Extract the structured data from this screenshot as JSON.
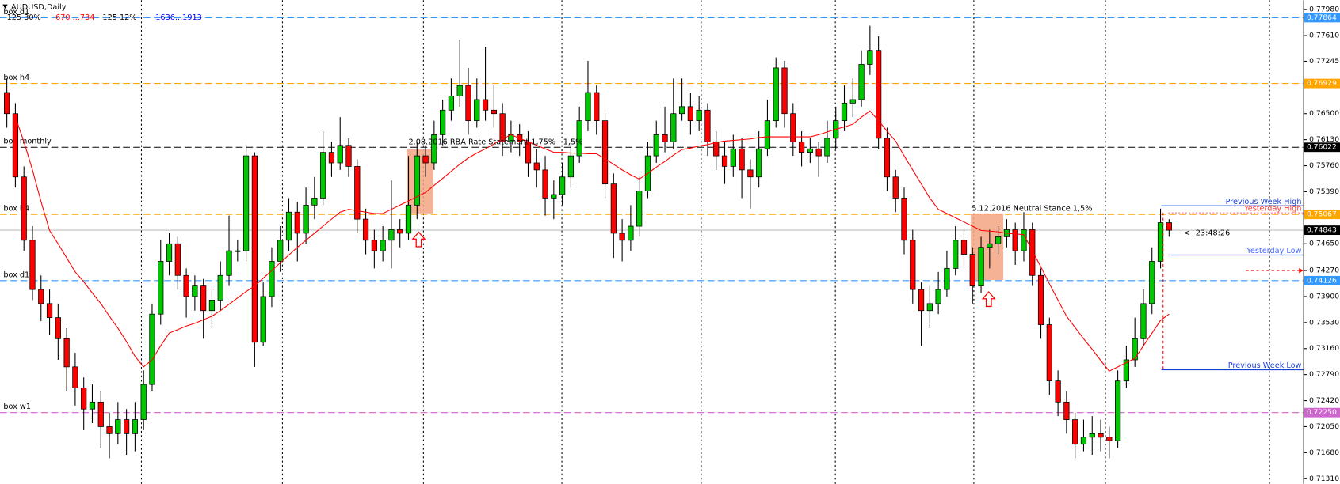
{
  "chart_data": {
    "type": "candlestick",
    "title": "AUDUSD,Daily",
    "info": [
      {
        "text": "125 30%",
        "color": "#000000"
      },
      {
        "text": "670 ...734",
        "color": "#ff0000"
      },
      {
        "text": "125 12%",
        "color": "#000000"
      },
      {
        "text": "1636...1913",
        "color": "#0000ff"
      }
    ],
    "colors": {
      "up": "#00c800",
      "down": "#ff0000"
    },
    "open": [
      0.768,
      0.765,
      0.756,
      0.747,
      0.74,
      0.738,
      0.736,
      0.733,
      0.729,
      0.726,
      0.723,
      0.724,
      0.7205,
      0.7195,
      0.7215,
      0.7195,
      0.7215,
      0.7265,
      0.7365,
      0.744,
      0.7465,
      0.742,
      0.739,
      0.7405,
      0.737,
      0.7385,
      0.742,
      0.7455,
      0.7455,
      0.759,
      0.7325,
      0.739,
      0.744,
      0.747,
      0.751,
      0.748,
      0.752,
      0.753,
      0.7595,
      0.758,
      0.7605,
      0.7575,
      0.75,
      0.747,
      0.7455,
      0.747,
      0.7485,
      0.748,
      0.752,
      0.759,
      0.758,
      0.762,
      0.7655,
      0.7675,
      0.769,
      0.764,
      0.767,
      0.7655,
      0.765,
      0.761,
      0.762,
      0.761,
      0.758,
      0.757,
      0.753,
      0.7535,
      0.756,
      0.759,
      0.764,
      0.768,
      0.764,
      0.755,
      0.748,
      0.747,
      0.749,
      0.754,
      0.759,
      0.762,
      0.761,
      0.765,
      0.766,
      0.764,
      0.7655,
      0.761,
      0.759,
      0.7575,
      0.76,
      0.757,
      0.756,
      0.76,
      0.764,
      0.7715,
      0.765,
      0.761,
      0.7595,
      0.76,
      0.759,
      0.7615,
      0.764,
      0.7665,
      0.767,
      0.772,
      0.774,
      0.7615,
      0.756,
      0.753,
      0.747,
      0.74,
      0.737,
      0.738,
      0.74,
      0.743,
      0.747,
      0.745,
      0.7405,
      0.746,
      0.7465,
      0.7475,
      0.7485,
      0.7455,
      0.7485,
      0.742,
      0.735,
      0.727,
      0.724,
      0.7215,
      0.718,
      0.719,
      0.7195,
      0.719,
      0.7185,
      0.727,
      0.73,
      0.733,
      0.738,
      0.744,
      0.7495
    ],
    "high": [
      0.77,
      0.7665,
      0.7575,
      0.749,
      0.742,
      0.74,
      0.738,
      0.7345,
      0.731,
      0.7275,
      0.7265,
      0.7255,
      0.7225,
      0.724,
      0.723,
      0.724,
      0.7285,
      0.738,
      0.747,
      0.748,
      0.7475,
      0.743,
      0.742,
      0.7415,
      0.74,
      0.744,
      0.7505,
      0.747,
      0.7605,
      0.7595,
      0.741,
      0.746,
      0.749,
      0.753,
      0.7525,
      0.7545,
      0.756,
      0.7625,
      0.761,
      0.7645,
      0.7615,
      0.7585,
      0.7515,
      0.7485,
      0.749,
      0.7555,
      0.75,
      0.759,
      0.761,
      0.7605,
      0.764,
      0.767,
      0.77,
      0.7755,
      0.7715,
      0.77,
      0.7745,
      0.769,
      0.7665,
      0.764,
      0.7635,
      0.7625,
      0.76,
      0.759,
      0.7555,
      0.758,
      0.761,
      0.766,
      0.7725,
      0.769,
      0.765,
      0.7565,
      0.75,
      0.752,
      0.756,
      0.761,
      0.764,
      0.766,
      0.77,
      0.77,
      0.768,
      0.7675,
      0.7665,
      0.7625,
      0.761,
      0.762,
      0.7615,
      0.7585,
      0.7625,
      0.767,
      0.773,
      0.7725,
      0.7665,
      0.7625,
      0.7615,
      0.761,
      0.764,
      0.766,
      0.769,
      0.77,
      0.774,
      0.7775,
      0.776,
      0.763,
      0.757,
      0.7545,
      0.7485,
      0.741,
      0.7405,
      0.7425,
      0.7455,
      0.749,
      0.7485,
      0.746,
      0.7475,
      0.7485,
      0.749,
      0.75,
      0.7495,
      0.751,
      0.7495,
      0.743,
      0.736,
      0.7285,
      0.7255,
      0.7225,
      0.7215,
      0.722,
      0.7215,
      0.7205,
      0.7285,
      0.732,
      0.736,
      0.74,
      0.746,
      0.7515,
      0.75
    ],
    "low": [
      0.763,
      0.7545,
      0.7455,
      0.7385,
      0.7355,
      0.7335,
      0.73,
      0.7255,
      0.7235,
      0.72,
      0.721,
      0.7175,
      0.716,
      0.718,
      0.7165,
      0.717,
      0.72,
      0.7255,
      0.735,
      0.742,
      0.74,
      0.736,
      0.737,
      0.733,
      0.7345,
      0.737,
      0.7405,
      0.744,
      0.744,
      0.729,
      0.732,
      0.7375,
      0.7425,
      0.7455,
      0.744,
      0.7465,
      0.75,
      0.752,
      0.756,
      0.757,
      0.756,
      0.748,
      0.745,
      0.743,
      0.744,
      0.743,
      0.746,
      0.747,
      0.75,
      0.756,
      0.757,
      0.7605,
      0.764,
      0.766,
      0.762,
      0.763,
      0.764,
      0.763,
      0.759,
      0.7595,
      0.759,
      0.756,
      0.7545,
      0.7505,
      0.75,
      0.752,
      0.7545,
      0.758,
      0.7625,
      0.762,
      0.753,
      0.7445,
      0.744,
      0.7455,
      0.7475,
      0.753,
      0.758,
      0.7595,
      0.76,
      0.764,
      0.762,
      0.7625,
      0.759,
      0.757,
      0.755,
      0.756,
      0.753,
      0.7515,
      0.7545,
      0.759,
      0.763,
      0.763,
      0.759,
      0.7575,
      0.758,
      0.756,
      0.758,
      0.76,
      0.7625,
      0.7645,
      0.766,
      0.7705,
      0.76,
      0.754,
      0.751,
      0.745,
      0.738,
      0.732,
      0.7345,
      0.7365,
      0.739,
      0.742,
      0.743,
      0.738,
      0.7395,
      0.743,
      0.745,
      0.746,
      0.7435,
      0.744,
      0.7405,
      0.733,
      0.725,
      0.722,
      0.7195,
      0.716,
      0.717,
      0.7165,
      0.717,
      0.716,
      0.7175,
      0.726,
      0.729,
      0.732,
      0.7365,
      0.743,
      0.7475
    ],
    "close": [
      0.765,
      0.756,
      0.747,
      0.74,
      0.738,
      0.736,
      0.733,
      0.729,
      0.726,
      0.723,
      0.724,
      0.7205,
      0.7195,
      0.7215,
      0.7195,
      0.7215,
      0.7265,
      0.7365,
      0.744,
      0.7465,
      0.742,
      0.739,
      0.7405,
      0.737,
      0.7385,
      0.742,
      0.7455,
      0.7455,
      0.759,
      0.7325,
      0.739,
      0.744,
      0.747,
      0.751,
      0.748,
      0.752,
      0.753,
      0.7595,
      0.758,
      0.7605,
      0.7575,
      0.75,
      0.747,
      0.7455,
      0.747,
      0.7485,
      0.748,
      0.752,
      0.759,
      0.758,
      0.762,
      0.7655,
      0.7675,
      0.769,
      0.764,
      0.767,
      0.7655,
      0.765,
      0.761,
      0.762,
      0.761,
      0.758,
      0.757,
      0.753,
      0.7535,
      0.756,
      0.759,
      0.764,
      0.768,
      0.764,
      0.755,
      0.748,
      0.747,
      0.749,
      0.754,
      0.759,
      0.762,
      0.761,
      0.765,
      0.766,
      0.764,
      0.7655,
      0.761,
      0.759,
      0.7575,
      0.76,
      0.757,
      0.756,
      0.76,
      0.764,
      0.7715,
      0.765,
      0.761,
      0.7595,
      0.76,
      0.759,
      0.7615,
      0.764,
      0.7665,
      0.767,
      0.772,
      0.774,
      0.7615,
      0.756,
      0.753,
      0.747,
      0.74,
      0.737,
      0.738,
      0.74,
      0.743,
      0.747,
      0.745,
      0.7405,
      0.746,
      0.7465,
      0.7475,
      0.7485,
      0.7455,
      0.7485,
      0.742,
      0.735,
      0.727,
      0.724,
      0.7215,
      0.718,
      0.719,
      0.7195,
      0.719,
      0.7185,
      0.727,
      0.73,
      0.733,
      0.738,
      0.744,
      0.7495,
      0.74843
    ],
    "ma": {
      "color": "#ff0000",
      "values": [
        null,
        0.7645,
        0.761,
        0.757,
        0.7525,
        0.7484,
        0.7465,
        0.7445,
        0.7425,
        0.7411,
        0.7395,
        0.738,
        0.7362,
        0.7345,
        0.7326,
        0.7305,
        0.729,
        0.73,
        0.732,
        0.7338,
        0.7343,
        0.7348,
        0.7352,
        0.7357,
        0.7362,
        0.737,
        0.7379,
        0.7388,
        0.7397,
        0.7405,
        0.7416,
        0.7427,
        0.7438,
        0.7449,
        0.746,
        0.747,
        0.748,
        0.749,
        0.75,
        0.751,
        0.7514,
        0.7512,
        0.751,
        0.7508,
        0.7508,
        0.7514,
        0.752,
        0.7526,
        0.7532,
        0.7538,
        0.7548,
        0.7558,
        0.7568,
        0.7578,
        0.7587,
        0.7594,
        0.76,
        0.7607,
        0.7614,
        0.762,
        0.7615,
        0.761,
        0.7605,
        0.76,
        0.7595,
        0.7595,
        0.7594,
        0.7594,
        0.7593,
        0.7593,
        0.7586,
        0.7578,
        0.757,
        0.7563,
        0.7557,
        0.7565,
        0.7574,
        0.7582,
        0.7591,
        0.7599,
        0.7601,
        0.7604,
        0.7606,
        0.7609,
        0.7611,
        0.7612,
        0.7613,
        0.7614,
        0.7616,
        0.7617,
        0.7617,
        0.7617,
        0.7617,
        0.7617,
        0.7617,
        0.762,
        0.7624,
        0.7628,
        0.7631,
        0.7635,
        0.7645,
        0.7654,
        0.764,
        0.7625,
        0.7611,
        0.759,
        0.757,
        0.755,
        0.753,
        0.7514,
        0.7508,
        0.7502,
        0.7496,
        0.749,
        0.7484,
        0.7483,
        0.7482,
        0.748,
        0.7479,
        0.7478,
        0.7455,
        0.7432,
        0.7408,
        0.7385,
        0.7362,
        0.7346,
        0.733,
        0.7315,
        0.7299,
        0.7284,
        0.729,
        0.7296,
        0.7302,
        0.732,
        0.7338,
        0.7356,
        0.7365
      ]
    },
    "ylim": [
      0.7131,
      0.7798
    ],
    "yticks": [
      {
        "value": 0.7798,
        "label": "0.77980"
      },
      {
        "value": 0.7761,
        "label": "0.77610"
      },
      0.77245,
      {
        "value": 0.765,
        "label": "0.76500"
      },
      {
        "value": 0.7613,
        "label": "0.76130"
      },
      {
        "value": 0.7576,
        "label": "0.75760"
      },
      {
        "value": 0.7539,
        "label": "0.75390"
      },
      {
        "value": 0.7465,
        "label": "0.74650"
      },
      {
        "value": 0.7427,
        "label": "0.74270"
      },
      {
        "value": 0.739,
        "label": "0.73900"
      },
      {
        "value": 0.7353,
        "label": "0.73530"
      },
      {
        "value": 0.7316,
        "label": "0.73160"
      },
      {
        "value": 0.7279,
        "label": "0.72790"
      },
      {
        "value": 0.7242,
        "label": "0.72420"
      },
      {
        "value": 0.7205,
        "label": "0.72050"
      },
      {
        "value": 0.7168,
        "label": "0.71680"
      },
      {
        "value": 0.7131,
        "label": "0.71310"
      }
    ],
    "levels": [
      {
        "name": "box d1",
        "price": 0.77864,
        "color": "#3399ff"
      },
      {
        "name": "box h4",
        "price": 0.76929,
        "color": "#ffa500"
      },
      {
        "name": "box monthly",
        "price": 0.76022,
        "color": "#000000"
      },
      {
        "name": "box h4",
        "price": 0.75067,
        "color": "#ffa500"
      },
      {
        "name": "box d1",
        "price": 0.74126,
        "color": "#3399ff"
      },
      {
        "name": "box w1",
        "price": 0.7225,
        "price_label": "0.72250",
        "color": "#cc66cc"
      }
    ],
    "ranges": [
      {
        "name": "Previous Week High",
        "price": 0.7519,
        "color": "#1a3fd6"
      },
      {
        "name": "Yesterday High",
        "price": 0.7509,
        "color": "#ff3333"
      },
      {
        "name": "Yesterday Low",
        "price": 0.7449,
        "color": "#4466ff"
      },
      {
        "name": "Previous Week Low",
        "price": 0.7286,
        "color": "#1a3fd6"
      }
    ],
    "events": [
      {
        "text": "2.08.2016 RBA Rate Statement 1,75% - 1,5%"
      },
      {
        "text": "5.12.2016 Neutral Stance 1,5%"
      }
    ],
    "timer": "<--23:48:26"
  }
}
